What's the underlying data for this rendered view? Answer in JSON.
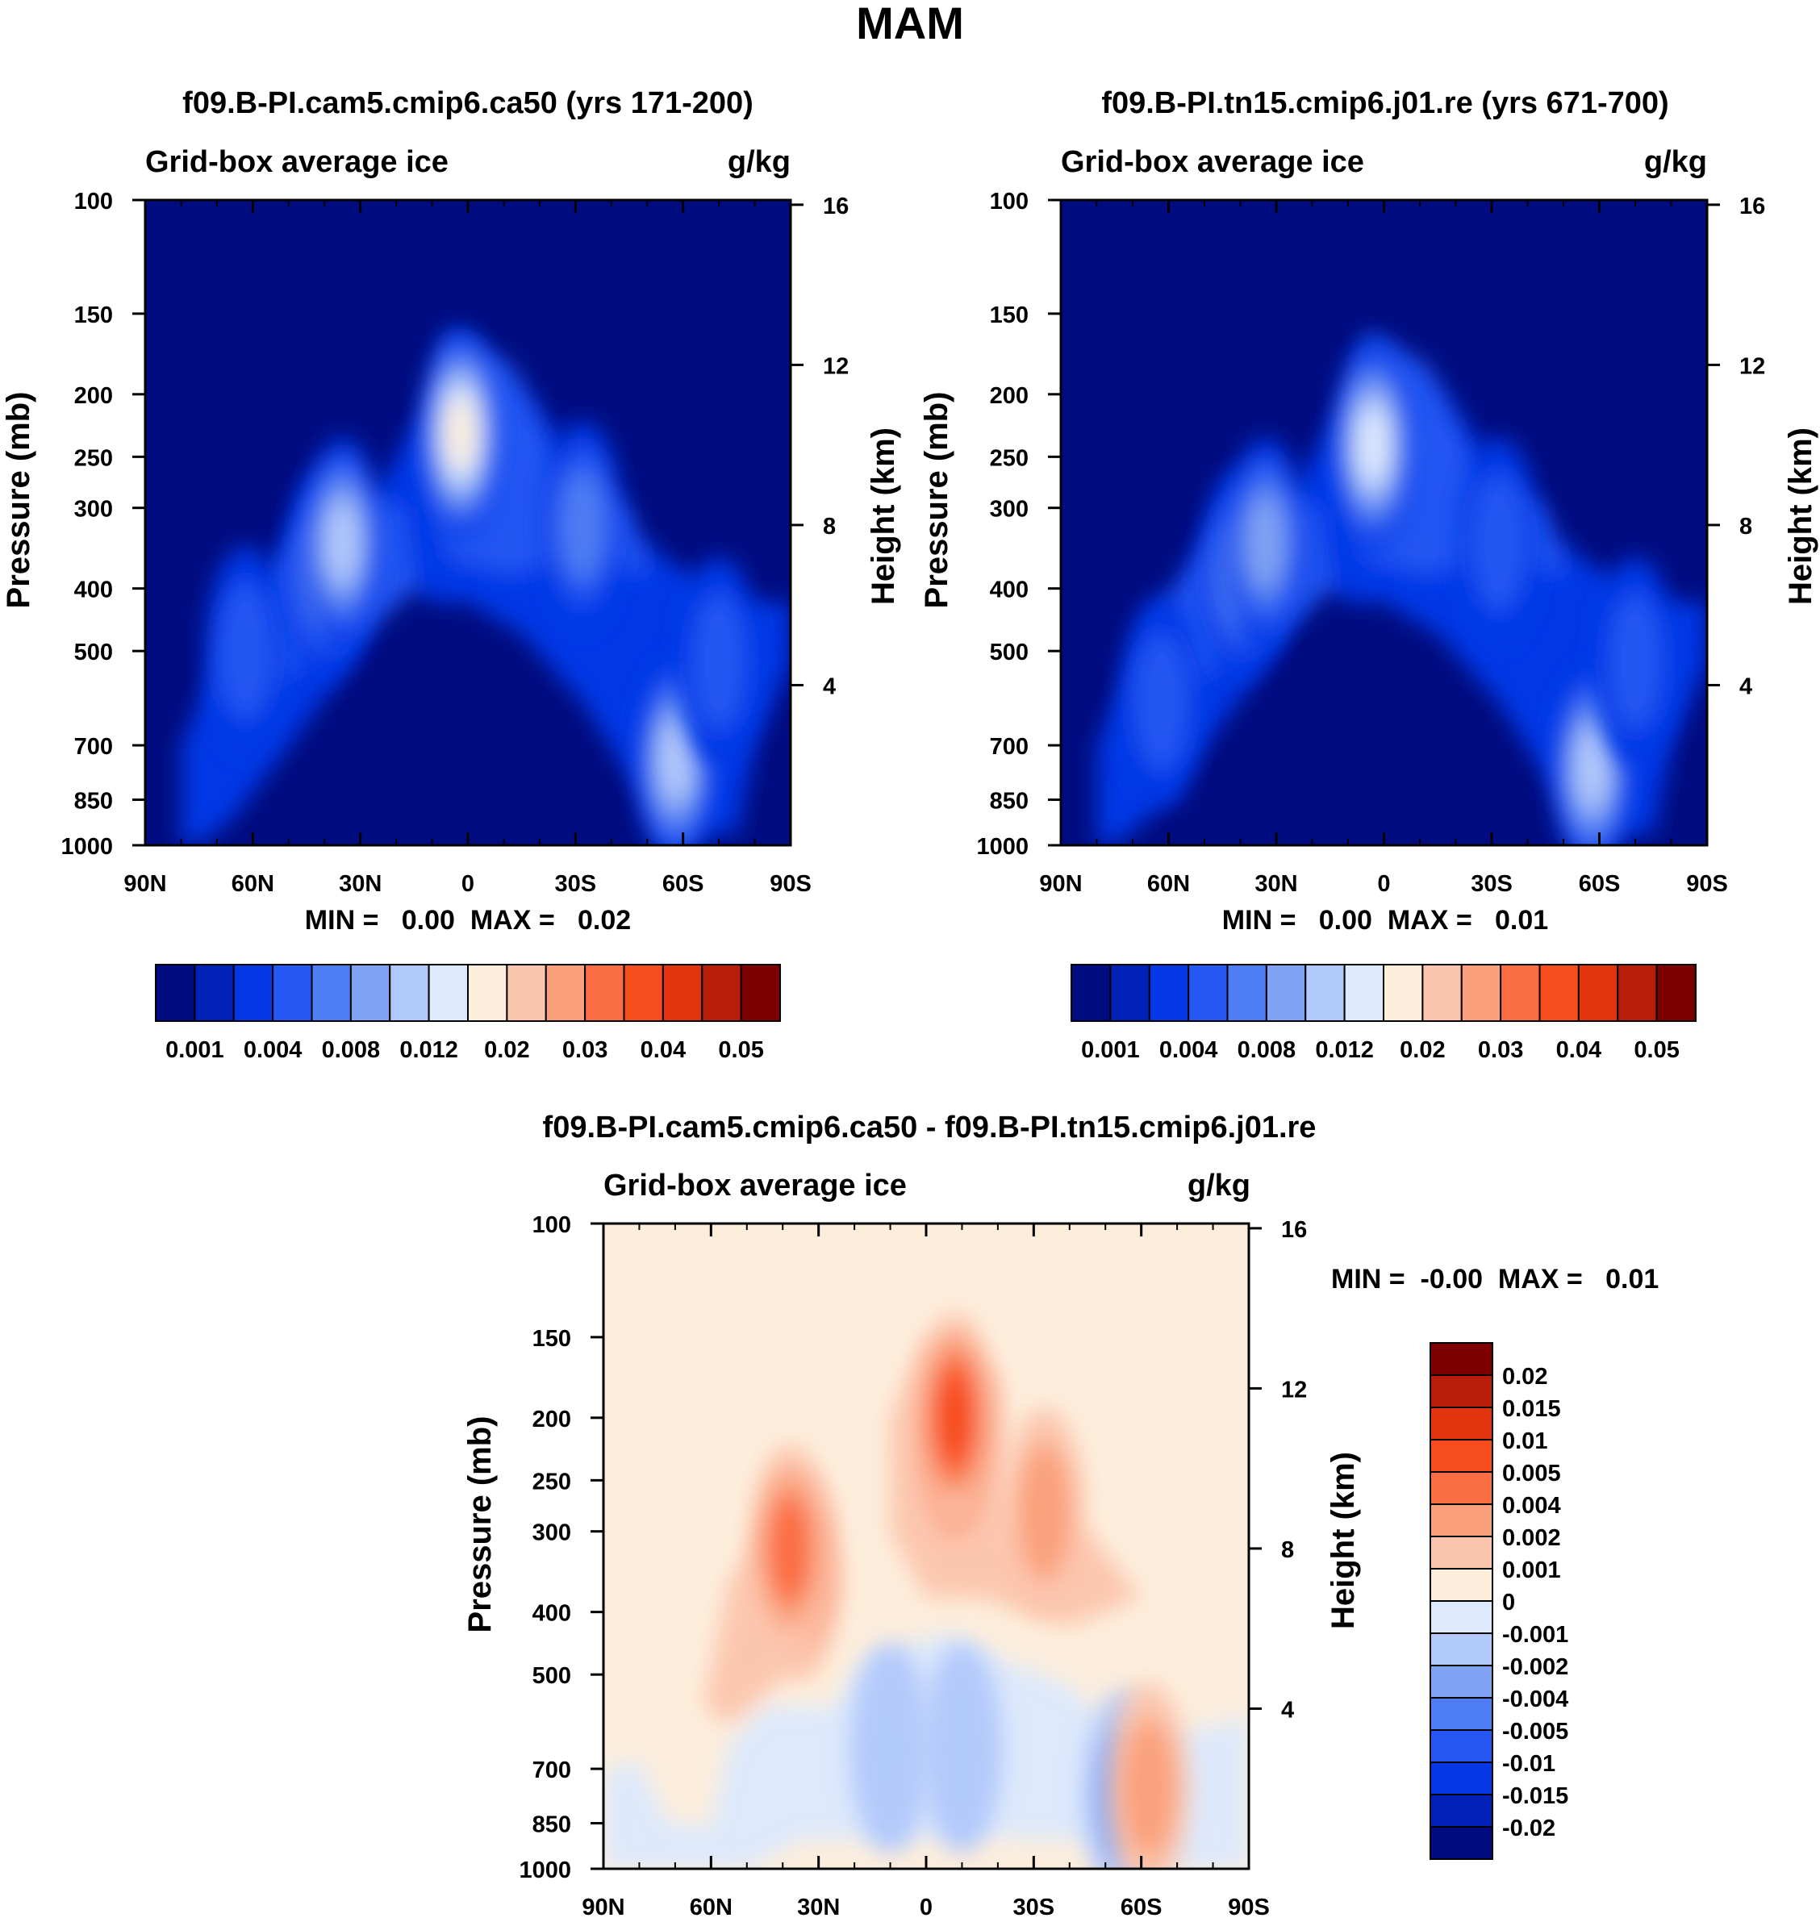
{
  "figure": {
    "title": "MAM"
  },
  "colors": {
    "abs": [
      "#000c7f",
      "#0020b8",
      "#0537e6",
      "#2457f3",
      "#4f7df3",
      "#80a3f3",
      "#b2c9fb",
      "#dde9fc",
      "#fdeedc",
      "#fcc6ae",
      "#faa07c",
      "#fb6d42",
      "#f74c1c",
      "#e2340e",
      "#b81d0a",
      "#7d0000"
    ],
    "diff": [
      "#000c7f",
      "#0020b8",
      "#0537e6",
      "#2457f3",
      "#4f7df3",
      "#80a3f3",
      "#b2c9fb",
      "#dde9fc",
      "#fdeedc",
      "#fcc6ae",
      "#faa07c",
      "#fb6d42",
      "#f74c1c",
      "#e2340e",
      "#b81d0a",
      "#7d0000"
    ]
  },
  "chart_data": [
    {
      "id": "panel_a",
      "type": "contour",
      "title": "f09.B-PI.cam5.cmip6.ca50 (yrs 171-200)",
      "left_label": "Grid-box average ice",
      "right_label": "g/kg",
      "ylabel": "Pressure (mb)",
      "ylabel_right": "Height (km)",
      "x_ticks": [
        "90N",
        "60N",
        "30N",
        "0",
        "30S",
        "60S",
        "90S"
      ],
      "y_ticks": [
        "100",
        "150",
        "200",
        "250",
        "300",
        "400",
        "500",
        "700",
        "850",
        "1000"
      ],
      "height_ticks": [
        "16",
        "12",
        "8",
        "4"
      ],
      "ylim": [
        100,
        1000
      ],
      "minmax": "MIN =   0.00  MAX =   0.02",
      "colorbar_labels": [
        "0.001",
        "0.004",
        "0.008",
        "0.012",
        "0.02",
        "0.03",
        "0.04",
        "0.05"
      ],
      "blobs": [
        {
          "lat": 62,
          "p": 500,
          "level": 3
        },
        {
          "lat": 40,
          "p": 380,
          "level": 4
        },
        {
          "lat": 35,
          "p": 340,
          "level": 6
        },
        {
          "lat": 2,
          "p": 230,
          "level": 8
        },
        {
          "lat": -32,
          "p": 320,
          "level": 4
        },
        {
          "lat": -58,
          "p": 740,
          "level": 6
        },
        {
          "lat": -70,
          "p": 520,
          "level": 3
        }
      ]
    },
    {
      "id": "panel_b",
      "type": "contour",
      "title": "f09.B-PI.tn15.cmip6.j01.re (yrs 671-700)",
      "left_label": "Grid-box average ice",
      "right_label": "g/kg",
      "ylabel": "Pressure (mb)",
      "ylabel_right": "Height (km)",
      "x_ticks": [
        "90N",
        "60N",
        "30N",
        "0",
        "30S",
        "60S",
        "90S"
      ],
      "y_ticks": [
        "100",
        "150",
        "200",
        "250",
        "300",
        "400",
        "500",
        "700",
        "850",
        "1000"
      ],
      "height_ticks": [
        "16",
        "12",
        "8",
        "4"
      ],
      "ylim": [
        100,
        1000
      ],
      "minmax": "MIN =   0.00  MAX =   0.01",
      "colorbar_labels": [
        "0.001",
        "0.004",
        "0.008",
        "0.012",
        "0.02",
        "0.03",
        "0.04",
        "0.05"
      ],
      "blobs": [
        {
          "lat": 62,
          "p": 600,
          "level": 3
        },
        {
          "lat": 40,
          "p": 380,
          "level": 4
        },
        {
          "lat": 33,
          "p": 340,
          "level": 5
        },
        {
          "lat": 3,
          "p": 240,
          "level": 7
        },
        {
          "lat": -32,
          "p": 340,
          "level": 3
        },
        {
          "lat": -58,
          "p": 760,
          "level": 6
        },
        {
          "lat": -70,
          "p": 520,
          "level": 3
        }
      ]
    },
    {
      "id": "panel_diff",
      "type": "contour",
      "title": "f09.B-PI.cam5.cmip6.ca50 - f09.B-PI.tn15.cmip6.j01.re",
      "left_label": "Grid-box average ice",
      "right_label": "g/kg",
      "ylabel": "Pressure (mb)",
      "ylabel_right": "Height (km)",
      "x_ticks": [
        "90N",
        "60N",
        "30N",
        "0",
        "30S",
        "60S",
        "90S"
      ],
      "y_ticks": [
        "100",
        "150",
        "200",
        "250",
        "300",
        "400",
        "500",
        "700",
        "850",
        "1000"
      ],
      "height_ticks": [
        "16",
        "12",
        "8",
        "4"
      ],
      "ylim": [
        100,
        1000
      ],
      "minmax": "MIN =  -0.00  MAX =   0.01",
      "colorbar_labels": [
        "0.02",
        "0.015",
        "0.01",
        "0.005",
        "0.004",
        "0.002",
        "0.001",
        "0",
        "-0.001",
        "-0.002",
        "-0.004",
        "-0.005",
        "-0.01",
        "-0.015",
        "-0.02"
      ],
      "blobs": [
        {
          "lat": 35,
          "p": 350,
          "level": 10
        },
        {
          "lat": 38,
          "p": 320,
          "level": 11
        },
        {
          "lat": -8,
          "p": 230,
          "level": 11
        },
        {
          "lat": -8,
          "p": 200,
          "level": 12
        },
        {
          "lat": -33,
          "p": 280,
          "level": 10
        },
        {
          "lat": -55,
          "p": 770,
          "level": 5
        },
        {
          "lat": -62,
          "p": 750,
          "level": 10
        },
        {
          "lat": 10,
          "p": 650,
          "level": 7
        },
        {
          "lat": -10,
          "p": 650,
          "level": 7
        }
      ]
    }
  ]
}
